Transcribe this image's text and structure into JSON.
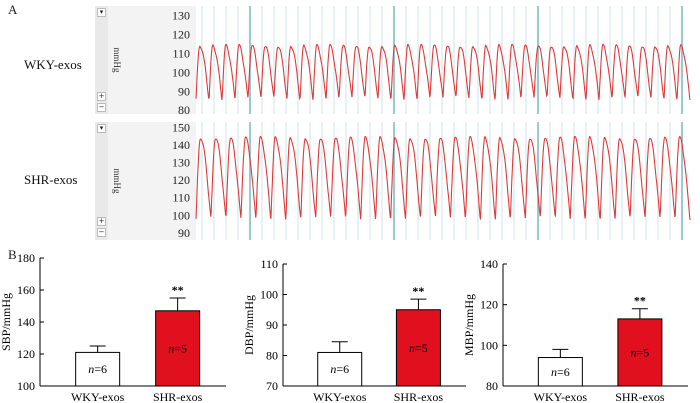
{
  "panel_a_label": "A",
  "panel_b_label": "B",
  "colors": {
    "trace": "#dd3b3b",
    "grid": "#a9d4d9",
    "major_grid": "#7fbcc4",
    "bar_shr": "#e0101e",
    "bar_wky": "#ffffff"
  },
  "trace_unit": "mmHg",
  "traces": [
    {
      "id": "wky",
      "label": "WKY-exos",
      "ticks": [
        "130",
        "120",
        "110",
        "100",
        "90",
        "80"
      ],
      "range": [
        78,
        135
      ],
      "high": 114,
      "low": 86,
      "cycles": 38
    },
    {
      "id": "shr",
      "label": "SHR-exos",
      "ticks": [
        "150",
        "140",
        "130",
        "120",
        "110",
        "100",
        "90"
      ],
      "range": [
        86,
        153
      ],
      "high": 144,
      "low": 98,
      "cycles": 33
    }
  ],
  "chart_data": [
    {
      "type": "bar",
      "title": "",
      "ylabel": "SBP/mmHg",
      "xlabel": "",
      "categories": [
        "WKY-exos",
        "SHR-exos"
      ],
      "values": [
        121,
        147
      ],
      "errors": [
        4,
        8
      ],
      "n_labels": [
        "n=6",
        "n=5"
      ],
      "significance": [
        "",
        "**"
      ],
      "ylim": [
        100,
        180
      ],
      "yticks": [
        "100",
        "120",
        "140",
        "160",
        "180"
      ]
    },
    {
      "type": "bar",
      "title": "",
      "ylabel": "DBP/mmHg",
      "xlabel": "",
      "categories": [
        "WKY-exos",
        "SHR-exos"
      ],
      "values": [
        81,
        95
      ],
      "errors": [
        3.5,
        3.5
      ],
      "n_labels": [
        "n=6",
        "n=5"
      ],
      "significance": [
        "",
        "**"
      ],
      "ylim": [
        70,
        110
      ],
      "yticks": [
        "70",
        "80",
        "90",
        "100",
        "110"
      ]
    },
    {
      "type": "bar",
      "title": "",
      "ylabel": "MBP/mmHg",
      "xlabel": "",
      "categories": [
        "WKY-exos",
        "SHR-exos"
      ],
      "values": [
        94,
        113
      ],
      "errors": [
        4,
        5
      ],
      "n_labels": [
        "n=6",
        "n=5"
      ],
      "significance": [
        "",
        "**"
      ],
      "ylim": [
        80,
        140
      ],
      "yticks": [
        "80",
        "100",
        "120",
        "140"
      ]
    }
  ]
}
